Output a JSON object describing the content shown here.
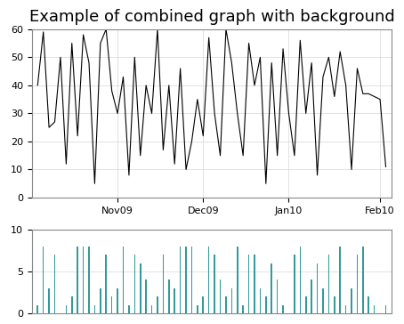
{
  "chart_data": [
    {
      "type": "line",
      "title": "Example of combined graph with background",
      "color": "#000000",
      "categories": [
        null,
        null,
        null,
        null,
        null,
        null,
        null,
        null,
        null,
        null,
        null,
        null,
        null,
        null,
        "Nov09",
        null,
        null,
        null,
        null,
        null,
        null,
        null,
        null,
        null,
        null,
        null,
        null,
        null,
        null,
        "Dec09",
        null,
        null,
        null,
        null,
        null,
        null,
        null,
        null,
        null,
        null,
        null,
        null,
        null,
        null,
        "Jan10",
        null,
        null,
        null,
        null,
        null,
        null,
        null,
        null,
        null,
        null,
        null,
        null,
        null,
        null,
        null,
        "Feb10",
        null
      ],
      "values": [
        40,
        59,
        25,
        27,
        50,
        12,
        55,
        22,
        58,
        48,
        5,
        55,
        60,
        38,
        30,
        43,
        8,
        50,
        15,
        40,
        30,
        60,
        17,
        40,
        12,
        46,
        10,
        20,
        35,
        22,
        57,
        30,
        15,
        60,
        48,
        30,
        15,
        55,
        40,
        50,
        5,
        48,
        15,
        53,
        30,
        15,
        56,
        30,
        48,
        8,
        43,
        50,
        36,
        52,
        40,
        10,
        46,
        37,
        37,
        36,
        35,
        11
      ],
      "ylim": [
        0,
        60
      ],
      "yticks": [
        0,
        10,
        20,
        30,
        40,
        50,
        60
      ],
      "grid": true
    },
    {
      "type": "bar",
      "color": "#339999",
      "categories": [
        null,
        null,
        null,
        null,
        null,
        null,
        null,
        null,
        null,
        null,
        null,
        null,
        null,
        null,
        null,
        null,
        null,
        null,
        null,
        null,
        null,
        null,
        null,
        null,
        null,
        null,
        null,
        null,
        null,
        null,
        null,
        null,
        null,
        null,
        null,
        null,
        null,
        null,
        null,
        null,
        null,
        null,
        null,
        null,
        null,
        null,
        null,
        null,
        null,
        null,
        null,
        null,
        null,
        null,
        null,
        null,
        null,
        null,
        null,
        null,
        null,
        null
      ],
      "values": [
        1,
        8,
        3,
        7,
        0,
        1,
        2,
        8,
        8,
        8,
        1,
        3,
        7,
        2,
        3,
        8,
        1,
        7,
        6,
        4,
        1,
        2,
        7,
        4,
        3,
        8,
        8,
        8,
        1,
        2,
        8,
        7,
        4,
        2,
        3,
        8,
        1,
        7,
        7,
        3,
        2,
        6,
        4,
        1,
        0,
        7,
        8,
        2,
        4,
        6,
        3,
        7,
        2,
        8,
        1,
        3,
        7,
        8,
        2,
        1,
        0,
        1
      ],
      "ylim": [
        0,
        10
      ],
      "yticks": [
        0,
        5,
        10
      ],
      "grid": true
    }
  ]
}
